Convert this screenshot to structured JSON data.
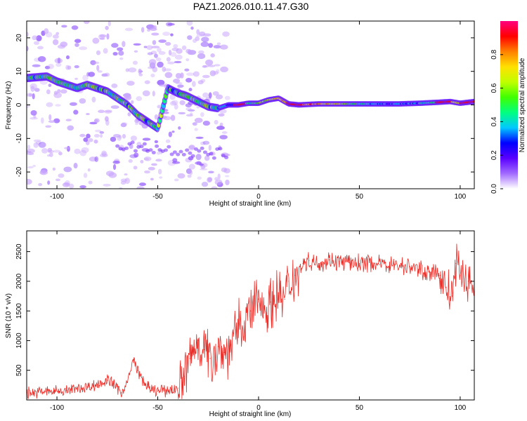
{
  "page_title": "PAZ1.2026.010.11.47.G30",
  "colors": {
    "line": "#ee2a24",
    "frame": "#000000",
    "background": "#ffffff"
  },
  "chart_data": [
    {
      "type": "heatmap",
      "title": "PAZ1.2026.010.11.47.G30",
      "xlabel": "Height of straight line (km)",
      "ylabel": "Frequency (Hz)",
      "xlim": [
        -115,
        107
      ],
      "ylim": [
        -25,
        25
      ],
      "xticks": [
        "-100",
        "-50",
        "0",
        "50",
        "100"
      ],
      "yticks": [
        "-20",
        "-10",
        "0",
        "10",
        "20"
      ],
      "colorbar": {
        "label": "Normalized spectral amplitude",
        "range": [
          0,
          1
        ],
        "ticks": [
          "0.0",
          "0.2",
          "0.4",
          "0.6",
          "0.8"
        ],
        "colors": [
          "#ffffff",
          "#a26bff",
          "#5a00ff",
          "#0000ff",
          "#00c8ff",
          "#00ff80",
          "#40ff00",
          "#c0ff00",
          "#ffe000",
          "#ff8000",
          "#ff0000",
          "#ff0080"
        ]
      },
      "trace": {
        "x": [
          -115,
          -105,
          -100,
          -95,
          -90,
          -85,
          -80,
          -75,
          -70,
          -65,
          -60,
          -55,
          -50,
          -45,
          -40,
          -35,
          -30,
          -25,
          -20,
          -15,
          -10,
          -5,
          0,
          5,
          10,
          15,
          20,
          30,
          40,
          50,
          60,
          70,
          80,
          90,
          95,
          100,
          107
        ],
        "y": [
          8,
          8.5,
          7,
          6,
          5,
          6,
          5,
          4,
          2,
          0,
          -3,
          -5,
          -7,
          5,
          3.5,
          2.5,
          1,
          -0.5,
          -1,
          0,
          0,
          0.5,
          0.5,
          1.5,
          2,
          0.3,
          0,
          0.3,
          0.3,
          0.3,
          0.3,
          0.3,
          0.5,
          0.8,
          1,
          0.5,
          1
        ]
      }
    },
    {
      "type": "line",
      "title": "",
      "xlabel": "Height of straight line (km)",
      "ylabel": "SNR (10 * v/v)",
      "xlim": [
        -115,
        107
      ],
      "ylim": [
        0,
        2850
      ],
      "xticks": [
        "-100",
        "-50",
        "0",
        "50",
        "100"
      ],
      "yticks": [
        "500",
        "1000",
        "1500",
        "2000",
        "2500"
      ],
      "series": [
        {
          "name": "SNR",
          "x": [
            -115,
            -105,
            -95,
            -85,
            -80,
            -75,
            -72,
            -68,
            -65,
            -62,
            -60,
            -57,
            -54,
            -50,
            -45,
            -40,
            -37,
            -34,
            -30,
            -27,
            -24,
            -20,
            -17,
            -14,
            -10,
            -7,
            -4,
            0,
            3,
            6,
            10,
            13,
            15,
            18,
            22,
            25,
            30,
            35,
            40,
            45,
            50,
            55,
            60,
            65,
            70,
            75,
            80,
            85,
            90,
            93,
            96,
            98,
            100,
            104,
            107
          ],
          "values": [
            120,
            140,
            160,
            220,
            260,
            330,
            280,
            120,
            300,
            680,
            500,
            300,
            180,
            150,
            160,
            200,
            400,
            700,
            1000,
            850,
            700,
            900,
            800,
            900,
            1200,
            1300,
            1500,
            1700,
            1550,
            1650,
            1800,
            1700,
            2000,
            2100,
            2300,
            2350,
            2300,
            2360,
            2330,
            2310,
            2300,
            2320,
            2280,
            2300,
            2260,
            2250,
            2200,
            2150,
            2100,
            1900,
            1750,
            2300,
            2100,
            2000,
            1900
          ]
        }
      ]
    }
  ]
}
